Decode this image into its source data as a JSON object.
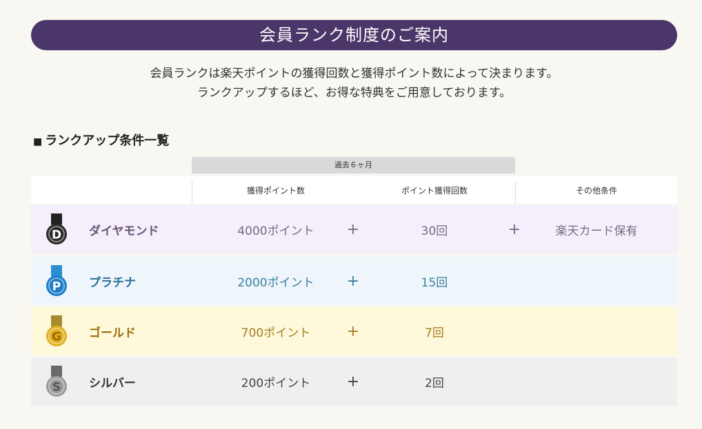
{
  "banner": {
    "title": "会員ランク制度のご案内"
  },
  "intro": {
    "line1": "会員ランクは楽天ポイントの獲得回数と獲得ポイント数によって決まります。",
    "line2": "ランクアップするほど、お得な特典をご用意しております。"
  },
  "section": {
    "marker": "■",
    "title": "ランクアップ条件一覧"
  },
  "table": {
    "period_label": "過去６ヶ月",
    "headers": {
      "points": "獲得ポイント数",
      "count": "ポイント獲得回数",
      "other": "その他条件"
    },
    "plus_symbol": "+",
    "ranks": [
      {
        "letter": "D",
        "name": "ダイヤモンド",
        "points": "4000ポイント",
        "count": "30回",
        "other": "楽天カード保有",
        "bg": "#f4effa",
        "name_color": "#6a5578",
        "text_color": "#7a6a84",
        "medal_color": "#2b2b2b",
        "ribbon_color": "#222222",
        "letter_color": "#ffffff"
      },
      {
        "letter": "P",
        "name": "プラチナ",
        "points": "2000ポイント",
        "count": "15回",
        "other": "",
        "bg": "#eef6fb",
        "name_color": "#2a6f96",
        "text_color": "#3a7fa0",
        "medal_color": "#1e7ec8",
        "ribbon_color": "#2a8fd0",
        "letter_color": "#ffffff"
      },
      {
        "letter": "G",
        "name": "ゴールド",
        "points": "700ポイント",
        "count": "7回",
        "other": "",
        "bg": "#fdf9da",
        "name_color": "#a06d10",
        "text_color": "#a87a20",
        "medal_color": "#e0b020",
        "ribbon_color": "#a88a30",
        "letter_color": "#9a6a00"
      },
      {
        "letter": "S",
        "name": "シルバー",
        "points": "200ポイント",
        "count": "2回",
        "other": "",
        "bg": "#efefef",
        "name_color": "#333333",
        "text_color": "#444444",
        "medal_color": "#9a9a9a",
        "ribbon_color": "#6a6a6a",
        "letter_color": "#555555"
      }
    ]
  }
}
